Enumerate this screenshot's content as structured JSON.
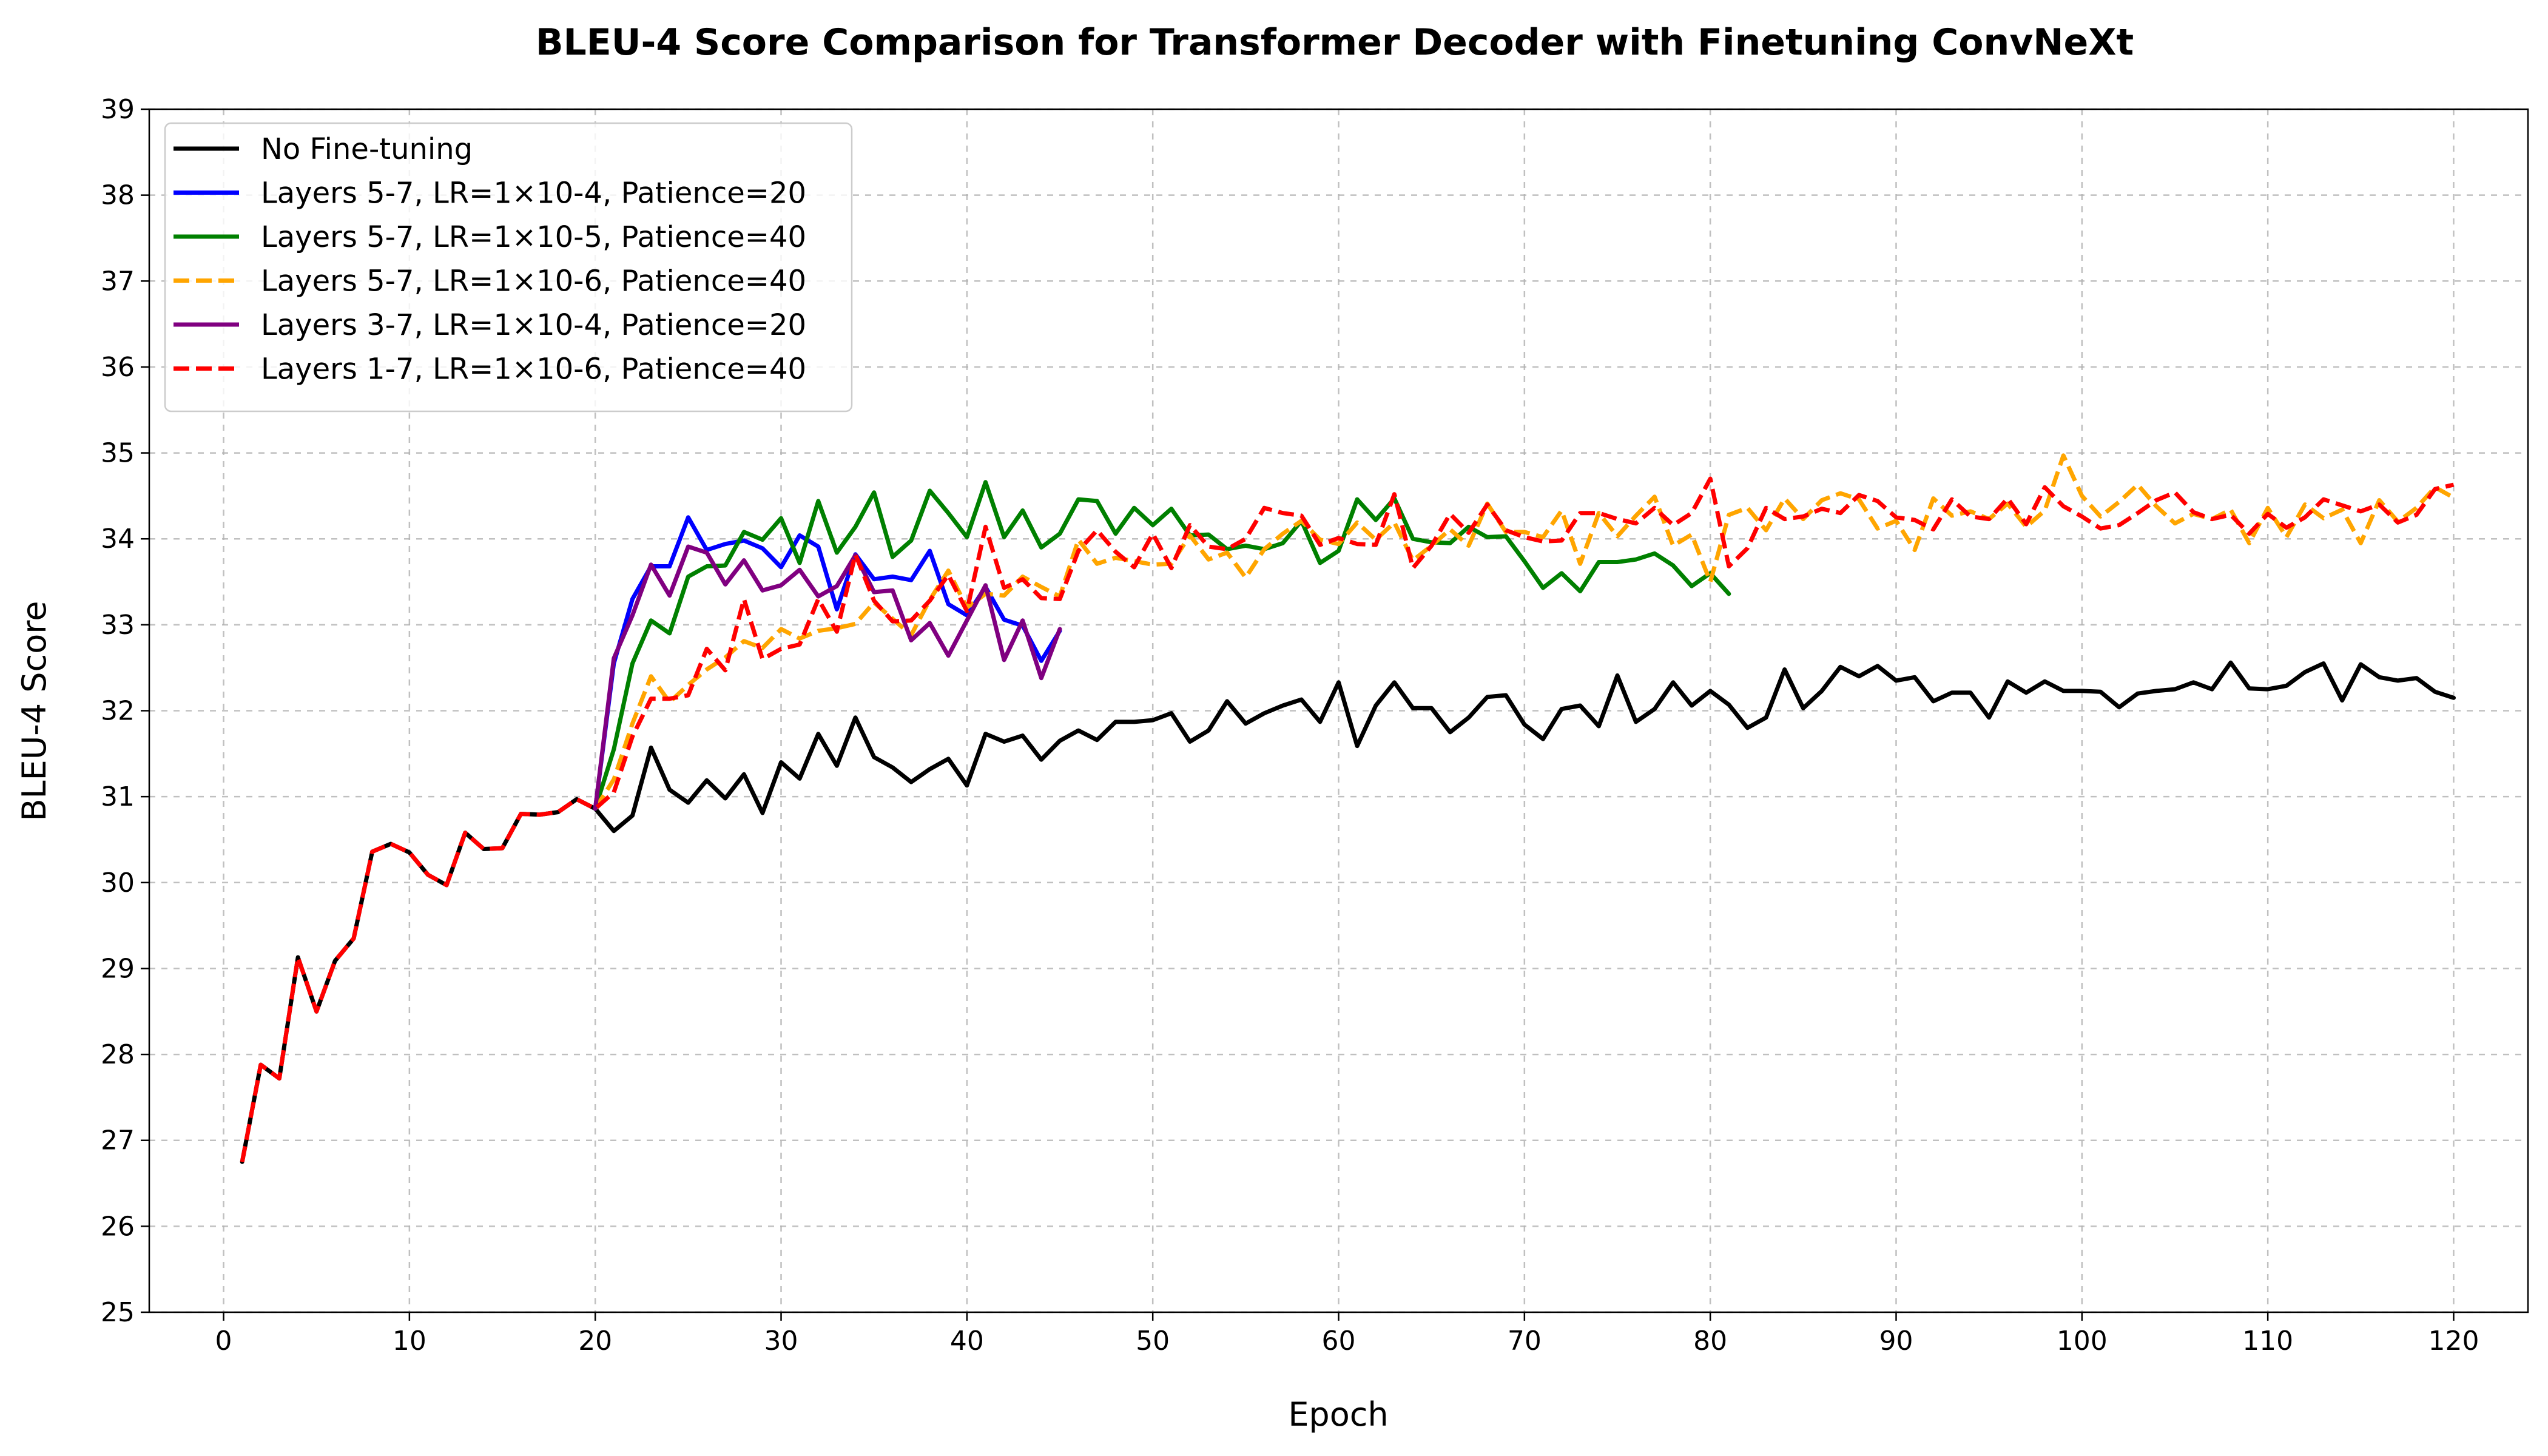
{
  "chart_data": {
    "type": "line",
    "title": "BLEU-4 Score Comparison for Transformer Decoder with Finetuning ConvNeXt",
    "xlabel": "Epoch",
    "ylabel": "BLEU-4 Score",
    "xlim": [
      -4,
      124
    ],
    "ylim": [
      25,
      39
    ],
    "xticks": [
      0,
      10,
      20,
      30,
      40,
      50,
      60,
      70,
      80,
      90,
      100,
      110,
      120
    ],
    "yticks": [
      25,
      26,
      27,
      28,
      29,
      30,
      31,
      32,
      33,
      34,
      35,
      36,
      37,
      38,
      39
    ],
    "grid": true,
    "legend_position": "top-left",
    "series": [
      {
        "name": "No Fine-tuning",
        "color": "#000000",
        "dashed": false,
        "x_start": 1,
        "values": [
          26.75,
          27.88,
          27.72,
          29.13,
          28.5,
          29.09,
          29.35,
          30.36,
          30.45,
          30.35,
          30.09,
          29.97,
          30.58,
          30.39,
          30.4,
          30.8,
          30.79,
          30.82,
          30.97,
          30.86,
          30.6,
          30.78,
          31.57,
          31.08,
          30.93,
          31.19,
          30.98,
          31.26,
          30.81,
          31.4,
          31.21,
          31.73,
          31.36,
          31.92,
          31.46,
          31.34,
          31.17,
          31.32,
          31.44,
          31.13,
          31.73,
          31.64,
          31.71,
          31.43,
          31.65,
          31.77,
          31.66,
          31.87,
          31.87,
          31.89,
          31.97,
          31.64,
          31.77,
          32.11,
          31.85,
          31.97,
          32.06,
          32.13,
          31.87,
          32.33,
          31.59,
          32.06,
          32.33,
          32.03,
          32.03,
          31.75,
          31.92,
          32.16,
          32.18,
          31.84,
          31.67,
          32.02,
          32.06,
          31.82,
          32.41,
          31.87,
          32.02,
          32.33,
          32.06,
          32.23,
          32.07,
          31.8,
          31.92,
          32.48,
          32.03,
          32.23,
          32.51,
          32.4,
          32.52,
          32.35,
          32.39,
          32.11,
          32.21,
          32.21,
          31.92,
          32.34,
          32.21,
          32.34,
          32.23,
          32.23,
          32.22,
          32.04,
          32.2,
          32.23,
          32.25,
          32.33,
          32.25,
          32.56,
          32.26,
          32.25,
          32.29,
          32.45,
          32.55,
          32.12,
          32.54,
          32.39,
          32.35,
          32.38,
          32.22,
          32.15
        ]
      },
      {
        "name": "Layers 5-7, LR=1×10-4, Patience=20",
        "color": "#0000ff",
        "dashed": false,
        "x_start": 20,
        "values": [
          30.86,
          32.55,
          33.3,
          33.68,
          33.68,
          34.25,
          33.87,
          33.94,
          33.98,
          33.89,
          33.67,
          34.04,
          33.91,
          33.18,
          33.82,
          33.53,
          33.56,
          33.52,
          33.86,
          33.24,
          33.11,
          33.44,
          33.06,
          32.99,
          32.58,
          32.93
        ]
      },
      {
        "name": "Layers 5-7, LR=1×10-5, Patience=40",
        "color": "#008000",
        "dashed": false,
        "x_start": 20,
        "values": [
          30.86,
          31.55,
          32.55,
          33.05,
          32.9,
          33.56,
          33.68,
          33.69,
          34.08,
          33.99,
          34.24,
          33.72,
          34.44,
          33.84,
          34.14,
          34.54,
          33.79,
          33.98,
          34.56,
          34.3,
          34.02,
          34.66,
          34.02,
          34.33,
          33.9,
          34.06,
          34.46,
          34.44,
          34.06,
          34.36,
          34.16,
          34.35,
          34.04,
          34.05,
          33.88,
          33.92,
          33.88,
          33.95,
          34.21,
          33.72,
          33.86,
          34.46,
          34.22,
          34.47,
          34.0,
          33.96,
          33.95,
          34.14,
          34.02,
          34.03,
          33.74,
          33.43,
          33.6,
          33.39,
          33.73,
          33.73,
          33.76,
          33.83,
          33.69,
          33.45,
          33.6,
          33.36
        ]
      },
      {
        "name": "Layers 5-7, LR=1×10-6, Patience=40",
        "color": "#ffa500",
        "dashed": true,
        "x_start": 20,
        "values": [
          30.86,
          31.2,
          31.85,
          32.4,
          32.1,
          32.3,
          32.48,
          32.62,
          32.81,
          32.73,
          32.95,
          32.84,
          32.93,
          32.96,
          33.01,
          33.26,
          33.07,
          32.88,
          33.29,
          33.63,
          33.2,
          33.36,
          33.34,
          33.56,
          33.44,
          33.33,
          33.99,
          33.71,
          33.78,
          33.74,
          33.7,
          33.71,
          34.04,
          33.76,
          33.84,
          33.55,
          33.88,
          34.06,
          34.21,
          33.99,
          33.94,
          34.19,
          33.99,
          34.19,
          33.75,
          33.92,
          34.11,
          33.92,
          34.41,
          34.08,
          34.08,
          34.02,
          34.33,
          33.71,
          34.3,
          34.03,
          34.27,
          34.49,
          33.92,
          34.05,
          33.5,
          34.28,
          34.36,
          34.1,
          34.47,
          34.23,
          34.45,
          34.53,
          34.46,
          34.12,
          34.21,
          33.87,
          34.47,
          34.27,
          34.32,
          34.23,
          34.41,
          34.14,
          34.33,
          34.97,
          34.5,
          34.26,
          34.43,
          34.63,
          34.38,
          34.18,
          34.29,
          34.23,
          34.34,
          33.95,
          34.36,
          34.02,
          34.4,
          34.24,
          34.34,
          33.95,
          34.45,
          34.2,
          34.36,
          34.6,
          34.48
        ]
      },
      {
        "name": "Layers 3-7, LR=1×10-4, Patience=20",
        "color": "#800080",
        "dashed": false,
        "x_start": 20,
        "values": [
          30.86,
          32.61,
          33.11,
          33.7,
          33.34,
          33.91,
          33.84,
          33.47,
          33.75,
          33.4,
          33.46,
          33.64,
          33.33,
          33.45,
          33.81,
          33.38,
          33.4,
          32.82,
          33.02,
          32.64,
          33.05,
          33.46,
          32.59,
          33.05,
          32.38,
          32.95
        ]
      },
      {
        "name": "Layers 1-7, LR=1×10-6, Patience=40",
        "color": "#ff0000",
        "dashed": true,
        "x_start": 1,
        "values": [
          26.75,
          27.88,
          27.72,
          29.13,
          28.5,
          29.09,
          29.35,
          30.36,
          30.45,
          30.35,
          30.09,
          29.97,
          30.58,
          30.39,
          30.4,
          30.8,
          30.79,
          30.82,
          30.97,
          30.86,
          31.05,
          31.7,
          32.14,
          32.14,
          32.18,
          32.72,
          32.47,
          33.3,
          32.6,
          32.72,
          32.77,
          33.3,
          32.92,
          33.82,
          33.28,
          33.04,
          33.05,
          33.28,
          33.58,
          33.16,
          34.14,
          33.43,
          33.53,
          33.31,
          33.3,
          33.86,
          34.1,
          33.85,
          33.67,
          34.06,
          33.66,
          34.16,
          33.91,
          33.88,
          34.0,
          34.36,
          34.3,
          34.27,
          33.93,
          34.01,
          33.94,
          33.93,
          34.52,
          33.66,
          33.92,
          34.29,
          34.07,
          34.4,
          34.1,
          34.02,
          33.97,
          33.98,
          34.3,
          34.3,
          34.23,
          34.18,
          34.36,
          34.16,
          34.3,
          34.7,
          33.68,
          33.89,
          34.36,
          34.23,
          34.26,
          34.35,
          34.3,
          34.51,
          34.44,
          34.25,
          34.22,
          34.11,
          34.46,
          34.26,
          34.23,
          34.47,
          34.17,
          34.6,
          34.38,
          34.26,
          34.12,
          34.16,
          34.3,
          34.45,
          34.54,
          34.31,
          34.23,
          34.28,
          34.06,
          34.29,
          34.13,
          34.25,
          34.46,
          34.39,
          34.32,
          34.4,
          34.19,
          34.28,
          34.58,
          34.63
        ]
      }
    ]
  }
}
